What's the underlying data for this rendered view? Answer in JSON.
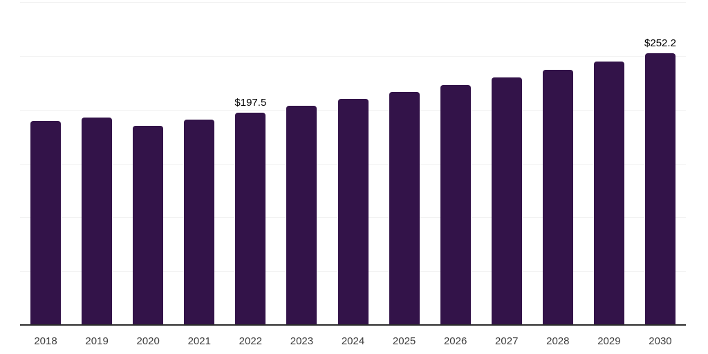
{
  "chart_data": {
    "type": "bar",
    "title": "",
    "xlabel": "",
    "ylabel": "",
    "categories": [
      "2018",
      "2019",
      "2020",
      "2021",
      "2022",
      "2023",
      "2024",
      "2025",
      "2026",
      "2027",
      "2028",
      "2029",
      "2030"
    ],
    "values": [
      189.3,
      192.8,
      184.9,
      190.9,
      197.5,
      203.6,
      209.9,
      216.4,
      223.1,
      230.0,
      237.1,
      244.5,
      252.2
    ],
    "bar_labels": [
      "",
      "",
      "",
      "",
      "$197.5",
      "",
      "",
      "",
      "",
      "",
      "",
      "",
      "$252.2"
    ],
    "ylim": [
      0,
      300
    ],
    "gridline_step": 50,
    "grid": "horizontal",
    "legend": "none",
    "colors": {
      "bar": "#331349",
      "axis_line": "#2b2b2b",
      "gridline": "#f2f2f2",
      "value_label": "#000000",
      "tick_label": "#3d3d3d",
      "background": "#ffffff"
    }
  }
}
